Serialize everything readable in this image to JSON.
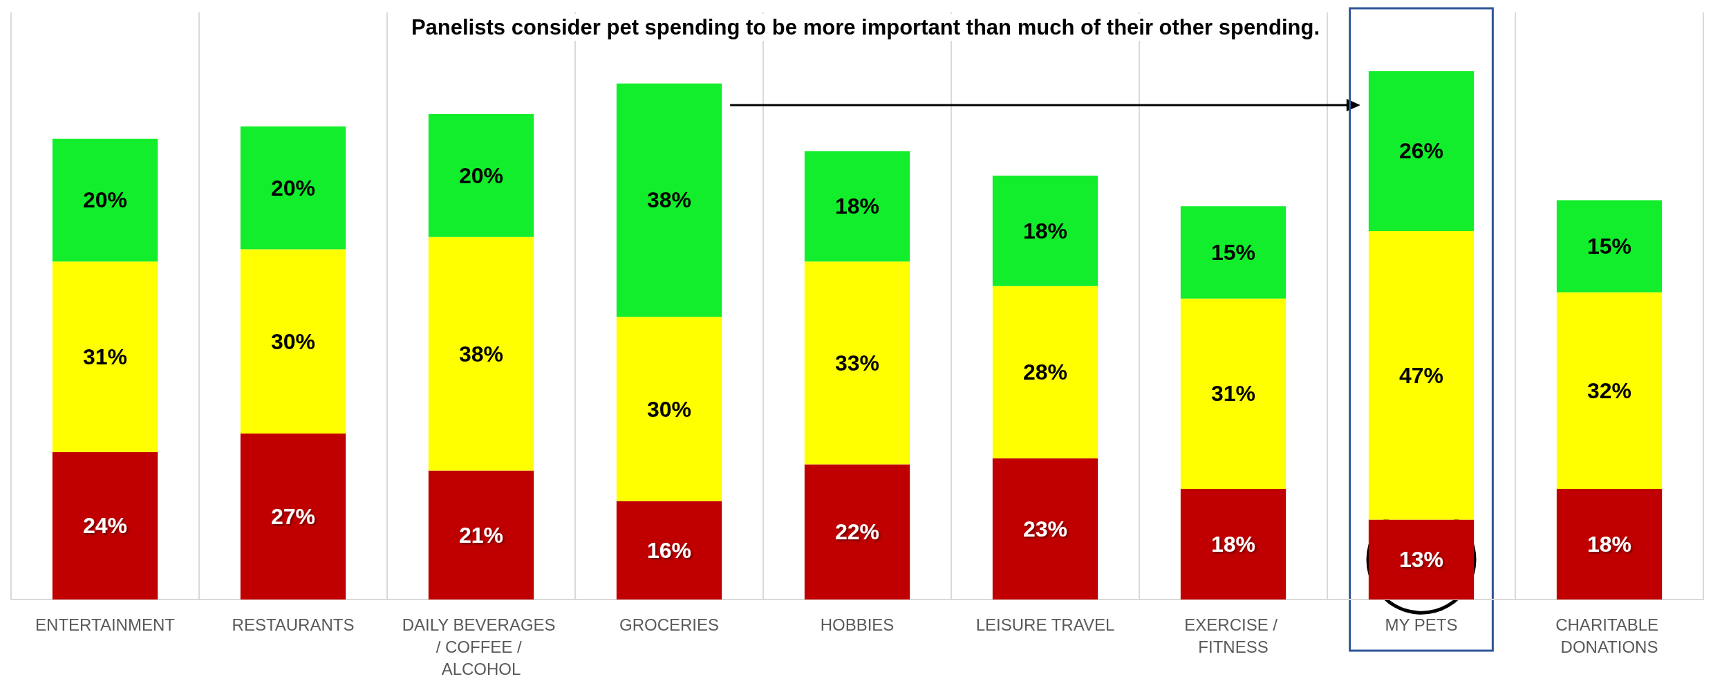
{
  "chart_data": {
    "type": "bar",
    "title": "Panelists consider pet spending to be more important than much of their other spending.",
    "categories": [
      "ENTERTAINMENT",
      "RESTAURANTS",
      "DAILY BEVERAGES / COFFEE / ALCOHOL",
      "GROCERIES",
      "HOBBIES",
      "LEISURE TRAVEL",
      "EXERCISE / FITNESS",
      "MY PETS",
      "CHARITABLE DONATIONS"
    ],
    "series": [
      {
        "color": "#c00000",
        "values": [
          24,
          27,
          21,
          16,
          22,
          23,
          18,
          13,
          18
        ],
        "value_labels": [
          "24%",
          "27%",
          "21%",
          "16%",
          "22%",
          "23%",
          "18%",
          "13%",
          "18%"
        ]
      },
      {
        "color": "#ffff00",
        "values": [
          31,
          30,
          38,
          30,
          33,
          28,
          31,
          47,
          32
        ],
        "value_labels": [
          "31%",
          "30%",
          "38%",
          "30%",
          "33%",
          "28%",
          "31%",
          "47%",
          "32%"
        ]
      },
      {
        "color": "#12ee2b",
        "values": [
          20,
          20,
          20,
          38,
          18,
          18,
          15,
          26,
          15
        ],
        "value_labels": [
          "20%",
          "20%",
          "20%",
          "38%",
          "18%",
          "18%",
          "15%",
          "26%",
          "15%"
        ]
      }
    ],
    "stacked": true,
    "grid": "x"
  }
}
